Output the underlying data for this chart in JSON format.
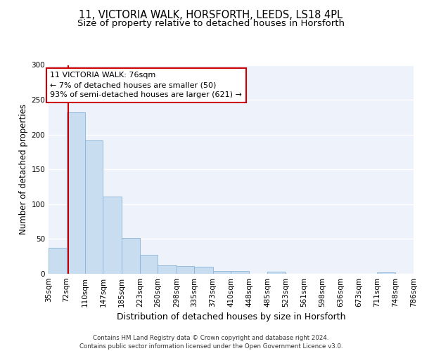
{
  "title_line1": "11, VICTORIA WALK, HORSFORTH, LEEDS, LS18 4PL",
  "title_line2": "Size of property relative to detached houses in Horsforth",
  "xlabel": "Distribution of detached houses by size in Horsforth",
  "ylabel": "Number of detached properties",
  "bar_color": "#c9ddf0",
  "bar_edgecolor": "#8ab4d8",
  "vline_x": 76,
  "vline_color": "#cc0000",
  "annotation_text": "11 VICTORIA WALK: 76sqm\n← 7% of detached houses are smaller (50)\n93% of semi-detached houses are larger (621) →",
  "annotation_box_edgecolor": "#cc0000",
  "annotation_box_facecolor": "#ffffff",
  "footer_text": "Contains HM Land Registry data © Crown copyright and database right 2024.\nContains public sector information licensed under the Open Government Licence v3.0.",
  "bin_edges": [
    35,
    72,
    110,
    147,
    185,
    223,
    260,
    298,
    335,
    373,
    410,
    448,
    485,
    523,
    561,
    598,
    636,
    673,
    711,
    748,
    786
  ],
  "bar_heights": [
    37,
    232,
    192,
    111,
    51,
    27,
    12,
    11,
    10,
    4,
    4,
    0,
    3,
    0,
    0,
    0,
    0,
    0,
    2,
    0
  ],
  "ylim": [
    0,
    300
  ],
  "yticks": [
    0,
    50,
    100,
    150,
    200,
    250,
    300
  ],
  "background_color": "#eef2fb",
  "grid_color": "#ffffff",
  "title_fontsize": 10.5,
  "subtitle_fontsize": 9.5,
  "ylabel_fontsize": 8.5,
  "xlabel_fontsize": 9,
  "tick_fontsize": 7.5,
  "annotation_fontsize": 8,
  "footer_fontsize": 6.2
}
